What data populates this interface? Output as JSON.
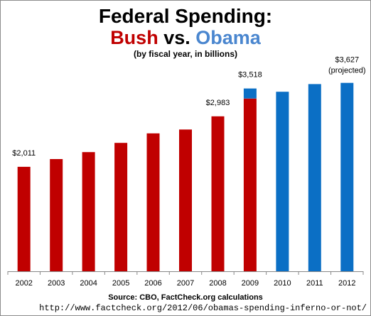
{
  "header": {
    "title_line1": "Federal Spending:",
    "bush": "Bush",
    "vs": "vs.",
    "obama": "Obama",
    "subtitle": "(by fiscal year, in billions)"
  },
  "footer": {
    "source": "Source: CBO, FactCheck.org  calculations",
    "url": "http://www.factcheck.org/2012/06/obamas-spending-inferno-or-not/"
  },
  "colors": {
    "bush": "#c00000",
    "obama": "#0b6fc5"
  },
  "chart_data": {
    "type": "bar",
    "title": "Federal Spending: Bush vs. Obama",
    "subtitle": "(by fiscal year, in billions)",
    "categories": [
      "2002",
      "2003",
      "2004",
      "2005",
      "2006",
      "2007",
      "2008",
      "2009",
      "2010",
      "2011",
      "2012"
    ],
    "series": [
      {
        "name": "Bush",
        "values": [
          2011,
          2160,
          2293,
          2472,
          2655,
          2729,
          2983,
          3325,
          0,
          0,
          0
        ]
      },
      {
        "name": "Obama",
        "values": [
          0,
          0,
          0,
          0,
          0,
          0,
          0,
          193,
          3456,
          3603,
          3627
        ]
      }
    ],
    "stacked": true,
    "ylim": [
      0,
      3800
    ],
    "grid": false,
    "annotations": [
      {
        "category": "2002",
        "text": "$2,011"
      },
      {
        "category": "2008",
        "text": "$2,983"
      },
      {
        "category": "2009",
        "text": "$3,518"
      },
      {
        "category": "2012",
        "text": "$3,627",
        "note": "(projected)"
      }
    ]
  }
}
